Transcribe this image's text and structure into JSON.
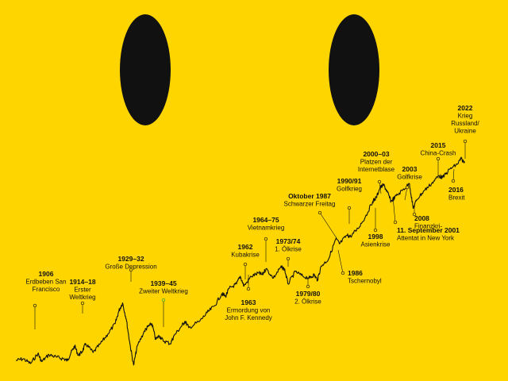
{
  "colors": {
    "background": "#FFD500",
    "ink": "#111111",
    "marker_green": "#2AA33A"
  },
  "chart_data": {
    "type": "line",
    "yscale": "log",
    "xlim": [
      1900,
      2023
    ],
    "series": [
      {
        "values": [
          [
            1900,
            1.0
          ],
          [
            1902,
            1.05
          ],
          [
            1904,
            0.92
          ],
          [
            1906,
            1.22
          ],
          [
            1907,
            0.97
          ],
          [
            1909,
            1.18
          ],
          [
            1911,
            1.1
          ],
          [
            1913,
            1.05
          ],
          [
            1914,
            1.0
          ],
          [
            1915,
            1.25
          ],
          [
            1916,
            1.5
          ],
          [
            1917,
            1.15
          ],
          [
            1918,
            1.28
          ],
          [
            1919,
            1.6
          ],
          [
            1921,
            1.25
          ],
          [
            1923,
            1.6
          ],
          [
            1925,
            2.1
          ],
          [
            1927,
            2.8
          ],
          [
            1928,
            4.0
          ],
          [
            1929,
            5.0
          ],
          [
            1930,
            3.2
          ],
          [
            1931,
            1.6
          ],
          [
            1932,
            0.88
          ],
          [
            1933,
            1.5
          ],
          [
            1935,
            2.3
          ],
          [
            1936,
            2.6
          ],
          [
            1937,
            2.8
          ],
          [
            1938,
            1.8
          ],
          [
            1939,
            2.0
          ],
          [
            1940,
            1.75
          ],
          [
            1942,
            1.6
          ],
          [
            1943,
            2.0
          ],
          [
            1945,
            2.6
          ],
          [
            1946,
            3.0
          ],
          [
            1947,
            2.5
          ],
          [
            1950,
            3.0
          ],
          [
            1952,
            3.8
          ],
          [
            1954,
            4.6
          ],
          [
            1956,
            6.5
          ],
          [
            1957,
            6.0
          ],
          [
            1958,
            7.5
          ],
          [
            1960,
            8.5
          ],
          [
            1961,
            10.5
          ],
          [
            1962,
            8.0
          ],
          [
            1964,
            10.5
          ],
          [
            1966,
            11.5
          ],
          [
            1967,
            11.0
          ],
          [
            1968,
            13.0
          ],
          [
            1970,
            10.0
          ],
          [
            1972,
            13.5
          ],
          [
            1973,
            13.0
          ],
          [
            1974,
            8.5
          ],
          [
            1976,
            12.0
          ],
          [
            1978,
            10.5
          ],
          [
            1980,
            10.0
          ],
          [
            1981,
            11.0
          ],
          [
            1982,
            9.5
          ],
          [
            1983,
            14.0
          ],
          [
            1985,
            17.0
          ],
          [
            1987,
            30.0
          ],
          [
            1988,
            26.0
          ],
          [
            1990,
            33.0
          ],
          [
            1991,
            32.0
          ],
          [
            1993,
            40.0
          ],
          [
            1995,
            55.0
          ],
          [
            1997,
            85.0
          ],
          [
            1998,
            95.0
          ],
          [
            1999,
            125.0
          ],
          [
            2000,
            135.0
          ],
          [
            2001,
            110.0
          ],
          [
            2002,
            85.0
          ],
          [
            2003,
            95.0
          ],
          [
            2005,
            115.0
          ],
          [
            2007,
            140.0
          ],
          [
            2008,
            70.0
          ],
          [
            2009,
            90.0
          ],
          [
            2011,
            115.0
          ],
          [
            2013,
            140.0
          ],
          [
            2015,
            175.0
          ],
          [
            2016,
            165.0
          ],
          [
            2018,
            210.0
          ],
          [
            2020,
            240.0
          ],
          [
            2021,
            280.0
          ],
          [
            2022,
            250.0
          ]
        ]
      }
    ],
    "annotations": [
      {
        "year": "1906",
        "text": [
          "Erdbeben San",
          "Francisco"
        ]
      },
      {
        "year": "1914–18",
        "text": [
          "Erster",
          "Weltkrieg"
        ]
      },
      {
        "year": "1929–32",
        "text": [
          "Große Depression"
        ]
      },
      {
        "year": "1939–45",
        "text": [
          "Zweiter Weltkrieg"
        ]
      },
      {
        "year": "1962",
        "text": [
          "Kubakrise"
        ]
      },
      {
        "year": "1963",
        "text": [
          "Ermordung von",
          "John F. Kennedy"
        ]
      },
      {
        "year": "1964–75",
        "text": [
          "Vietnamkrieg"
        ]
      },
      {
        "year": "1973/74",
        "text": [
          "1. Ölkrise"
        ]
      },
      {
        "year": "1979/80",
        "text": [
          "2. Ölkrise"
        ]
      },
      {
        "year": "Oktober 1987",
        "text": [
          "Schwarzer Freitag"
        ]
      },
      {
        "year": "1986",
        "text": [
          "Tschernobyl"
        ]
      },
      {
        "year": "1990/91",
        "text": [
          "Golfkrieg"
        ]
      },
      {
        "year": "1998",
        "text": [
          "Asienkrise"
        ]
      },
      {
        "year": "2000–03",
        "text": [
          "Platzen der",
          "Internetblase"
        ]
      },
      {
        "year": "2003",
        "text": [
          "Golfkrise"
        ]
      },
      {
        "year": "11. September 2001",
        "text": [
          "Attentat in New York"
        ]
      },
      {
        "year": "2008",
        "text": [
          "Finanzkri-"
        ]
      },
      {
        "year": "2015",
        "text": [
          "China-Crash"
        ]
      },
      {
        "year": "2016",
        "text": [
          "Brexit"
        ]
      },
      {
        "year": "2022",
        "text": [
          "Krieg",
          "Russland/",
          "Ukraine"
        ]
      }
    ]
  }
}
